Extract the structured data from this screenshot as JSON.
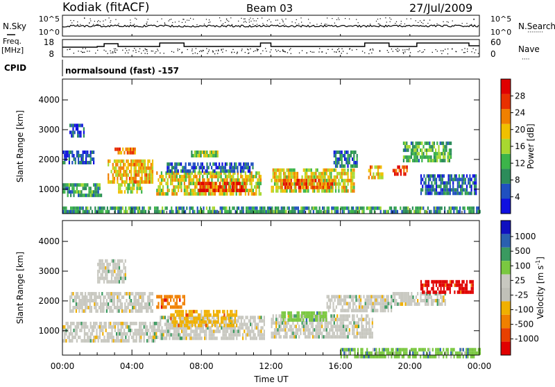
{
  "header": {
    "station": "Kodiak (fitACF)",
    "beam": "Beam 03",
    "date": "27/Jul/2009"
  },
  "nsky_panel": {
    "left_label": "N.Sky",
    "right_label": "N.Search",
    "yticks_left": [
      "10^5",
      "10^0"
    ],
    "yticks_right": [
      "10^5",
      "10^0"
    ]
  },
  "freq_panel": {
    "left_label_line1": "Freq.",
    "left_label_line2": "[MHz]",
    "right_label": "Nave",
    "yticks_left": [
      "18",
      "8"
    ],
    "yticks_right": [
      "60",
      "0"
    ]
  },
  "cpid_panel": {
    "label": "CPID",
    "program": "normalsound (fast) -157"
  },
  "x_axis": {
    "label": "Time UT",
    "ticks": [
      "00:00",
      "04:00",
      "08:00",
      "12:00",
      "16:00",
      "20:00",
      "00:00"
    ]
  },
  "colors": {
    "power_scale": [
      "#1010e0",
      "#2050c0",
      "#2c8c5a",
      "#3cb44a",
      "#a8d830",
      "#f0c000",
      "#f08000",
      "#e83000",
      "#e00000"
    ],
    "velocity_scale": [
      "#1010c0",
      "#2a60b0",
      "#3a9a60",
      "#7ac840",
      "#c8c8c0",
      "#c0c0b8",
      "#f0b000",
      "#f08000",
      "#e84000",
      "#e00000"
    ]
  },
  "chart_data": [
    {
      "type": "heatmap",
      "title": "",
      "ylabel": "Slant Range [km]",
      "xlabel": "",
      "x_range": [
        0,
        24
      ],
      "ylim": [
        180,
        4700
      ],
      "yticks": [
        "1000",
        "2000",
        "3000",
        "4000"
      ],
      "colorbar": {
        "label": "Power [dB]",
        "ticks": [
          "4",
          "8",
          "12",
          "16",
          "20",
          "24",
          "28"
        ],
        "range": [
          0,
          32
        ]
      },
      "regions": [
        {
          "t0": 0.0,
          "t1": 2.2,
          "r0": 800,
          "r1": 1200,
          "value": 10
        },
        {
          "t0": 0.0,
          "t1": 1.8,
          "r0": 1900,
          "r1": 2300,
          "value": 6
        },
        {
          "t0": 0.4,
          "t1": 1.2,
          "r0": 2800,
          "r1": 3200,
          "value": 5
        },
        {
          "t0": 2.6,
          "t1": 5.2,
          "r0": 1300,
          "r1": 2000,
          "value": 20
        },
        {
          "t0": 3.0,
          "t1": 4.2,
          "r0": 2200,
          "r1": 2400,
          "value": 24
        },
        {
          "t0": 3.2,
          "t1": 4.6,
          "r0": 900,
          "r1": 1200,
          "value": 16
        },
        {
          "t0": 5.4,
          "t1": 11.4,
          "r0": 900,
          "r1": 1600,
          "value": 18
        },
        {
          "t0": 7.8,
          "t1": 10.6,
          "r0": 950,
          "r1": 1250,
          "value": 28
        },
        {
          "t0": 6.0,
          "t1": 11.0,
          "r0": 1600,
          "r1": 1900,
          "value": 6
        },
        {
          "t0": 7.4,
          "t1": 9.0,
          "r0": 2100,
          "r1": 2300,
          "value": 14
        },
        {
          "t0": 12.0,
          "t1": 16.8,
          "r0": 950,
          "r1": 1700,
          "value": 18
        },
        {
          "t0": 12.6,
          "t1": 15.6,
          "r0": 1050,
          "r1": 1350,
          "value": 26
        },
        {
          "t0": 15.6,
          "t1": 17.0,
          "r0": 1800,
          "r1": 2300,
          "value": 8
        },
        {
          "t0": 17.6,
          "t1": 18.4,
          "r0": 1400,
          "r1": 1800,
          "value": 20
        },
        {
          "t0": 19.0,
          "t1": 19.8,
          "r0": 1500,
          "r1": 1800,
          "value": 28
        },
        {
          "t0": 19.6,
          "t1": 22.4,
          "r0": 2000,
          "r1": 2600,
          "value": 12
        },
        {
          "t0": 20.6,
          "t1": 23.8,
          "r0": 900,
          "r1": 1500,
          "value": 6
        },
        {
          "t0": 0.0,
          "t1": 24.0,
          "r0": 200,
          "r1": 420,
          "value": 10
        }
      ]
    },
    {
      "type": "heatmap",
      "title": "",
      "ylabel": "Slant Range [km]",
      "xlabel": "Time UT",
      "x_range": [
        0,
        24
      ],
      "ylim": [
        180,
        4700
      ],
      "yticks": [
        "1000",
        "2000",
        "3000",
        "4000"
      ],
      "colorbar": {
        "label": "Velocity [m s-1]",
        "ticks": [
          "1000",
          "500",
          "100",
          "25",
          "-25",
          "-100",
          "-500",
          "-1000"
        ],
        "range": [
          1000,
          -1000
        ]
      },
      "regions": [
        {
          "t0": 0.0,
          "t1": 5.6,
          "r0": 700,
          "r1": 1300,
          "value": 0
        },
        {
          "t0": 0.4,
          "t1": 5.2,
          "r0": 1700,
          "r1": 2300,
          "value": 0
        },
        {
          "t0": 2.0,
          "t1": 3.6,
          "r0": 2600,
          "r1": 3400,
          "value": 0
        },
        {
          "t0": 5.4,
          "t1": 7.0,
          "r0": 1800,
          "r1": 2200,
          "value": -300
        },
        {
          "t0": 5.6,
          "t1": 11.6,
          "r0": 800,
          "r1": 1500,
          "value": 0
        },
        {
          "t0": 6.2,
          "t1": 10.0,
          "r0": 1200,
          "r1": 1700,
          "value": -60
        },
        {
          "t0": 12.0,
          "t1": 17.8,
          "r0": 850,
          "r1": 1550,
          "value": 0
        },
        {
          "t0": 12.6,
          "t1": 15.2,
          "r0": 1350,
          "r1": 1650,
          "value": 80
        },
        {
          "t0": 15.2,
          "t1": 19.0,
          "r0": 1700,
          "r1": 2200,
          "value": 0
        },
        {
          "t0": 19.0,
          "t1": 22.0,
          "r0": 1900,
          "r1": 2300,
          "value": 0
        },
        {
          "t0": 20.6,
          "t1": 23.6,
          "r0": 2300,
          "r1": 2700,
          "value": -800
        },
        {
          "t0": 16.0,
          "t1": 24.0,
          "r0": 180,
          "r1": 420,
          "value": 60
        }
      ]
    }
  ]
}
